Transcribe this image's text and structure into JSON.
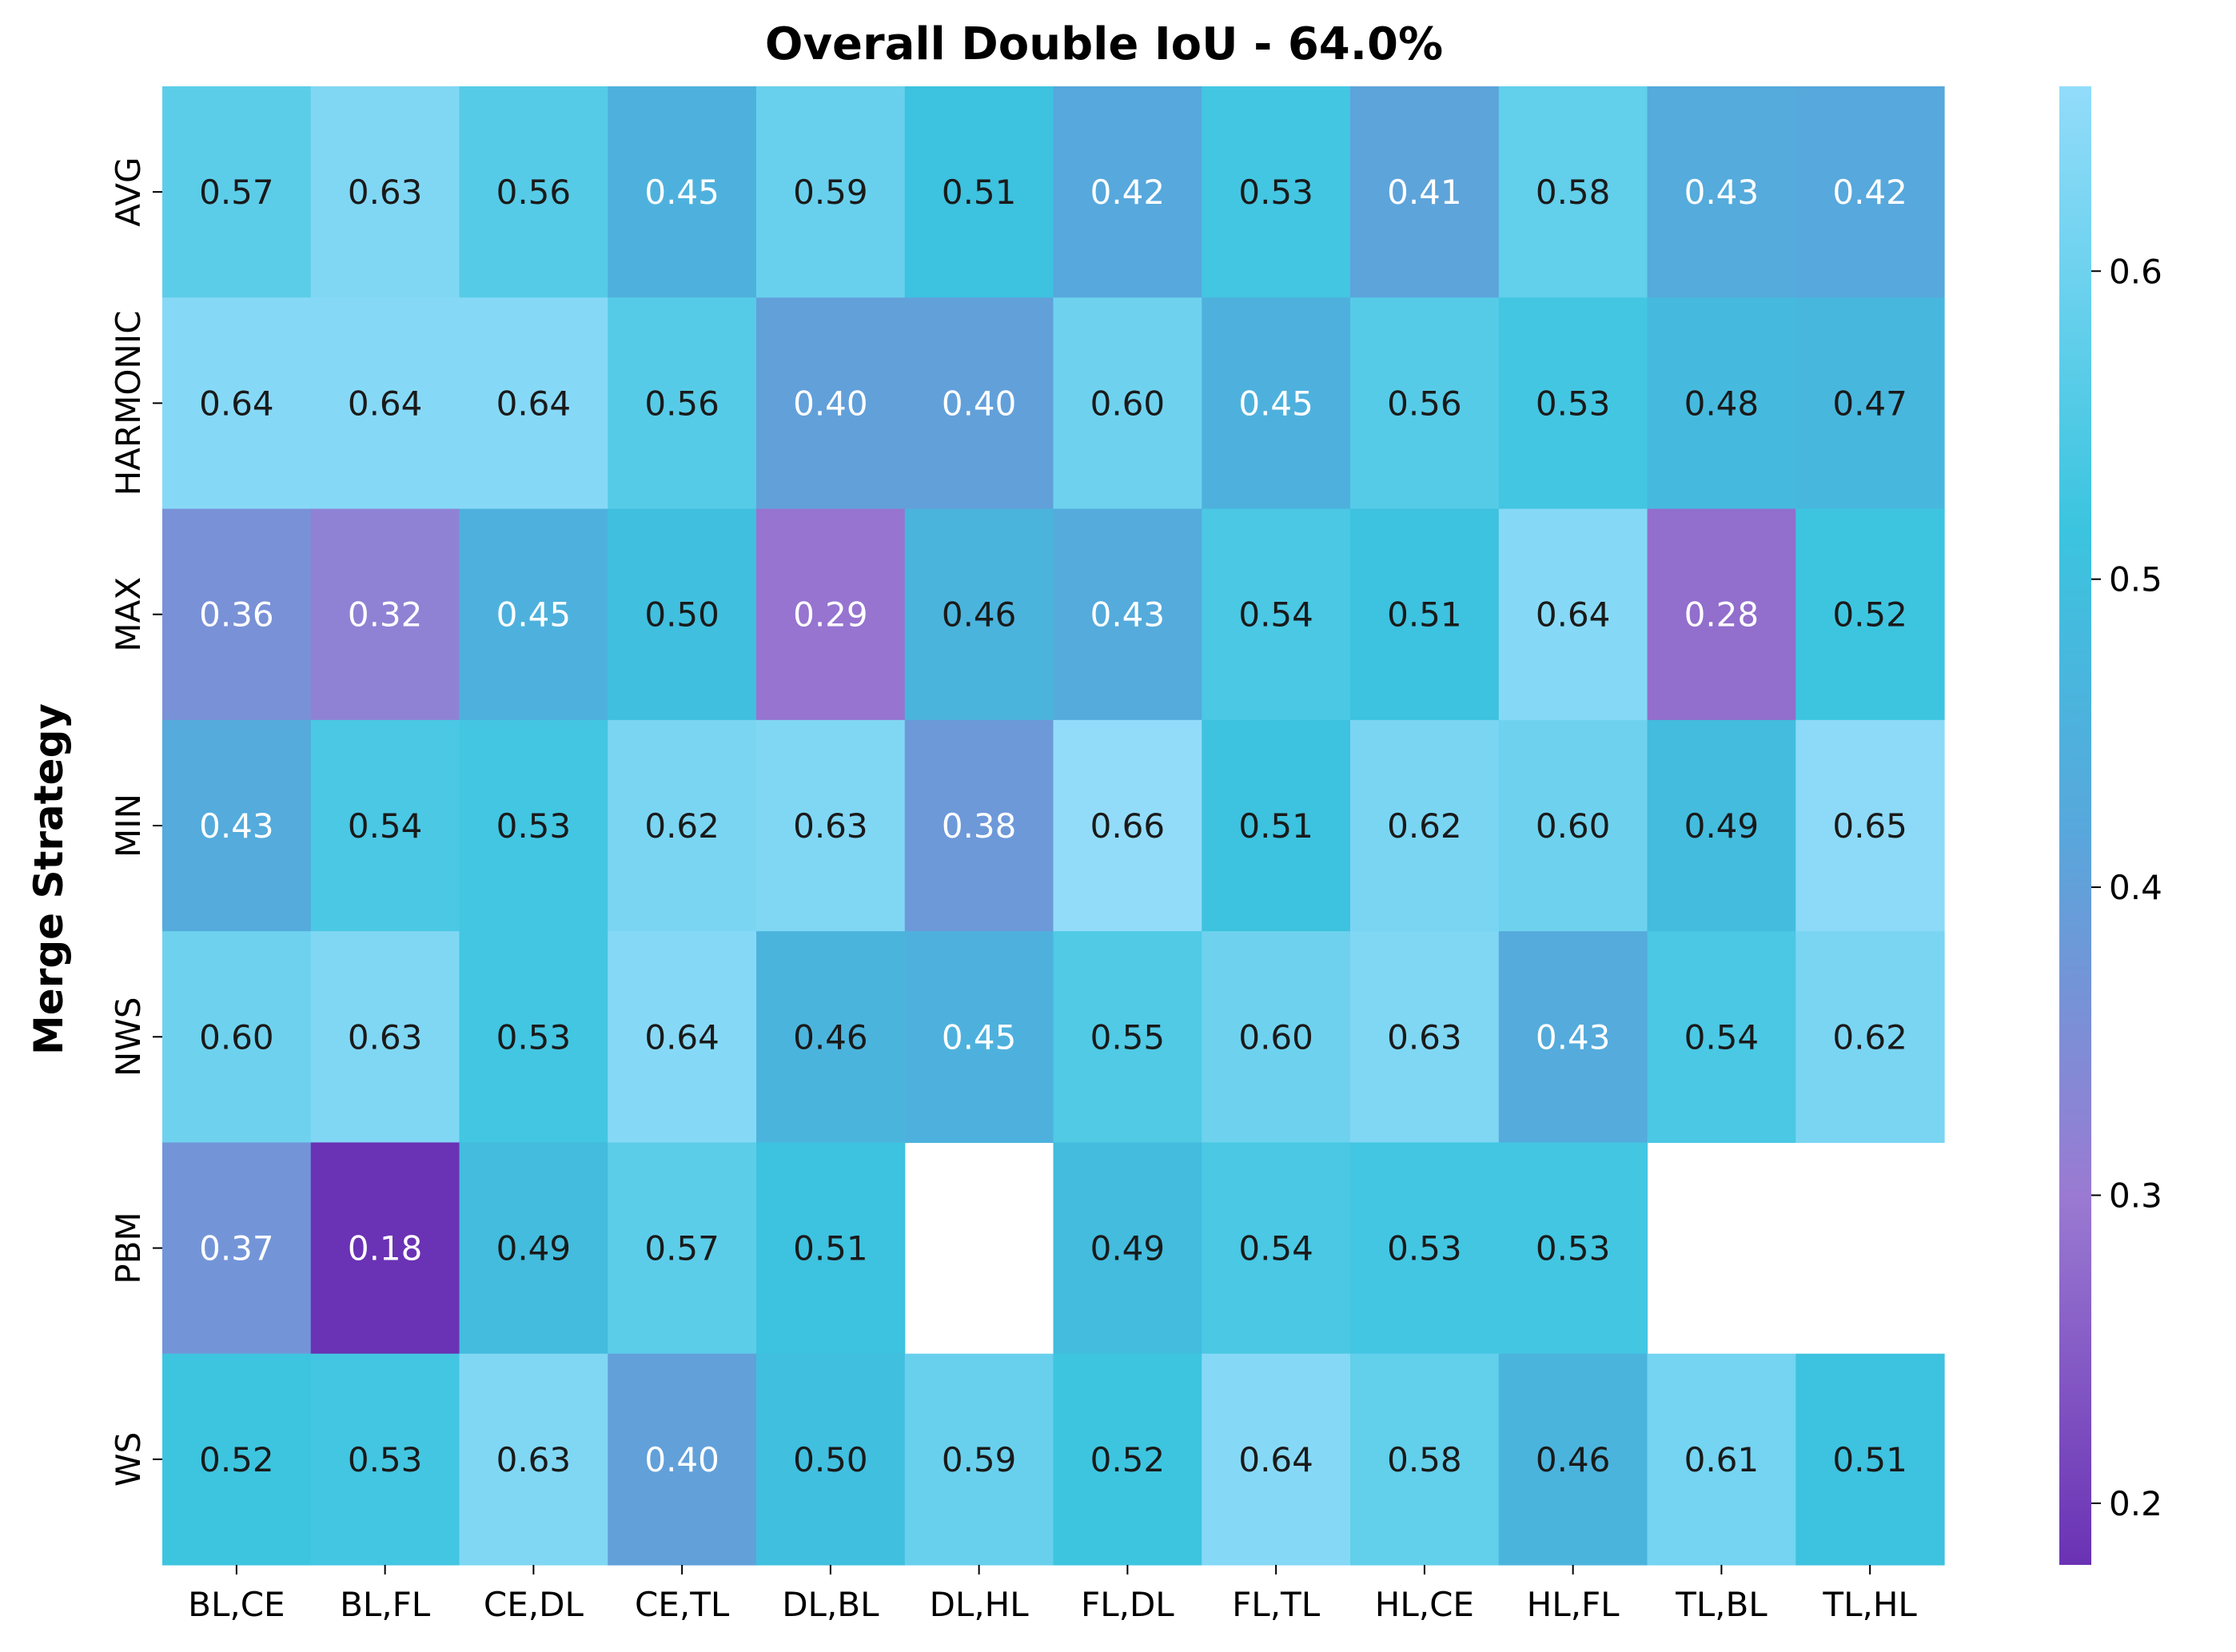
{
  "chart_data": {
    "type": "heatmap",
    "title": "Overall Double IoU - 64.0%",
    "ylabel": "Merge Strategy",
    "xlabel": "",
    "columns": [
      "BL,CE",
      "BL,FL",
      "CE,DL",
      "CE,TL",
      "DL,BL",
      "DL,HL",
      "FL,DL",
      "FL,TL",
      "HL,CE",
      "HL,FL",
      "TL,BL",
      "TL,HL"
    ],
    "rows": [
      "AVG",
      "HARMONIC",
      "MAX",
      "MIN",
      "NWS",
      "PBM",
      "WS"
    ],
    "values": [
      [
        0.57,
        0.63,
        0.56,
        0.45,
        0.59,
        0.51,
        0.42,
        0.53,
        0.41,
        0.58,
        0.43,
        0.42
      ],
      [
        0.64,
        0.64,
        0.64,
        0.56,
        0.4,
        0.4,
        0.6,
        0.45,
        0.56,
        0.53,
        0.48,
        0.47
      ],
      [
        0.36,
        0.32,
        0.45,
        0.5,
        0.29,
        0.46,
        0.43,
        0.54,
        0.51,
        0.64,
        0.28,
        0.52
      ],
      [
        0.43,
        0.54,
        0.53,
        0.62,
        0.63,
        0.38,
        0.66,
        0.51,
        0.62,
        0.6,
        0.49,
        0.65
      ],
      [
        0.6,
        0.63,
        0.53,
        0.64,
        0.46,
        0.45,
        0.55,
        0.6,
        0.63,
        0.43,
        0.54,
        0.62
      ],
      [
        0.37,
        0.18,
        0.49,
        0.57,
        0.51,
        null,
        0.49,
        0.54,
        0.53,
        0.53,
        null,
        null
      ],
      [
        0.52,
        0.53,
        0.63,
        0.4,
        0.5,
        0.59,
        0.52,
        0.64,
        0.58,
        0.46,
        0.61,
        0.51
      ]
    ],
    "value_labels": [
      [
        "0.57",
        "0.63",
        "0.56",
        "0.45",
        "0.59",
        "0.51",
        "0.42",
        "0.53",
        "0.41",
        "0.58",
        "0.43",
        "0.42"
      ],
      [
        "0.64",
        "0.64",
        "0.64",
        "0.56",
        "0.40",
        "0.40",
        "0.60",
        "0.45",
        "0.56",
        "0.53",
        "0.48",
        "0.47"
      ],
      [
        "0.36",
        "0.32",
        "0.45",
        "0.50",
        "0.29",
        "0.46",
        "0.43",
        "0.54",
        "0.51",
        "0.64",
        "0.28",
        "0.52"
      ],
      [
        "0.43",
        "0.54",
        "0.53",
        "0.62",
        "0.63",
        "0.38",
        "0.66",
        "0.51",
        "0.62",
        "0.60",
        "0.49",
        "0.65"
      ],
      [
        "0.60",
        "0.63",
        "0.53",
        "0.64",
        "0.46",
        "0.45",
        "0.55",
        "0.60",
        "0.63",
        "0.43",
        "0.54",
        "0.62"
      ],
      [
        "0.37",
        "0.18",
        "0.49",
        "0.57",
        "0.51",
        "",
        "0.49",
        "0.54",
        "0.53",
        "0.53",
        "",
        ""
      ],
      [
        "0.52",
        "0.53",
        "0.63",
        "0.40",
        "0.50",
        "0.59",
        "0.52",
        "0.64",
        "0.58",
        "0.46",
        "0.61",
        "0.51"
      ]
    ],
    "colorbar": {
      "range": [
        0.18,
        0.66
      ],
      "ticks": [
        0.2,
        0.3,
        0.4,
        0.5,
        0.6
      ],
      "tick_labels": [
        "0.2",
        "0.3",
        "0.4",
        "0.5",
        "0.6"
      ],
      "colormap": [
        [
          0.0,
          "#6a32b4"
        ],
        [
          0.25,
          "#9a7ad2"
        ],
        [
          0.5,
          "#57a8dc"
        ],
        [
          0.7,
          "#3bc4df"
        ],
        [
          1.0,
          "#92dcfa"
        ]
      ]
    },
    "text_color_light": "#ffffff",
    "text_color_dark": "#1a1a1a",
    "grid": false
  }
}
